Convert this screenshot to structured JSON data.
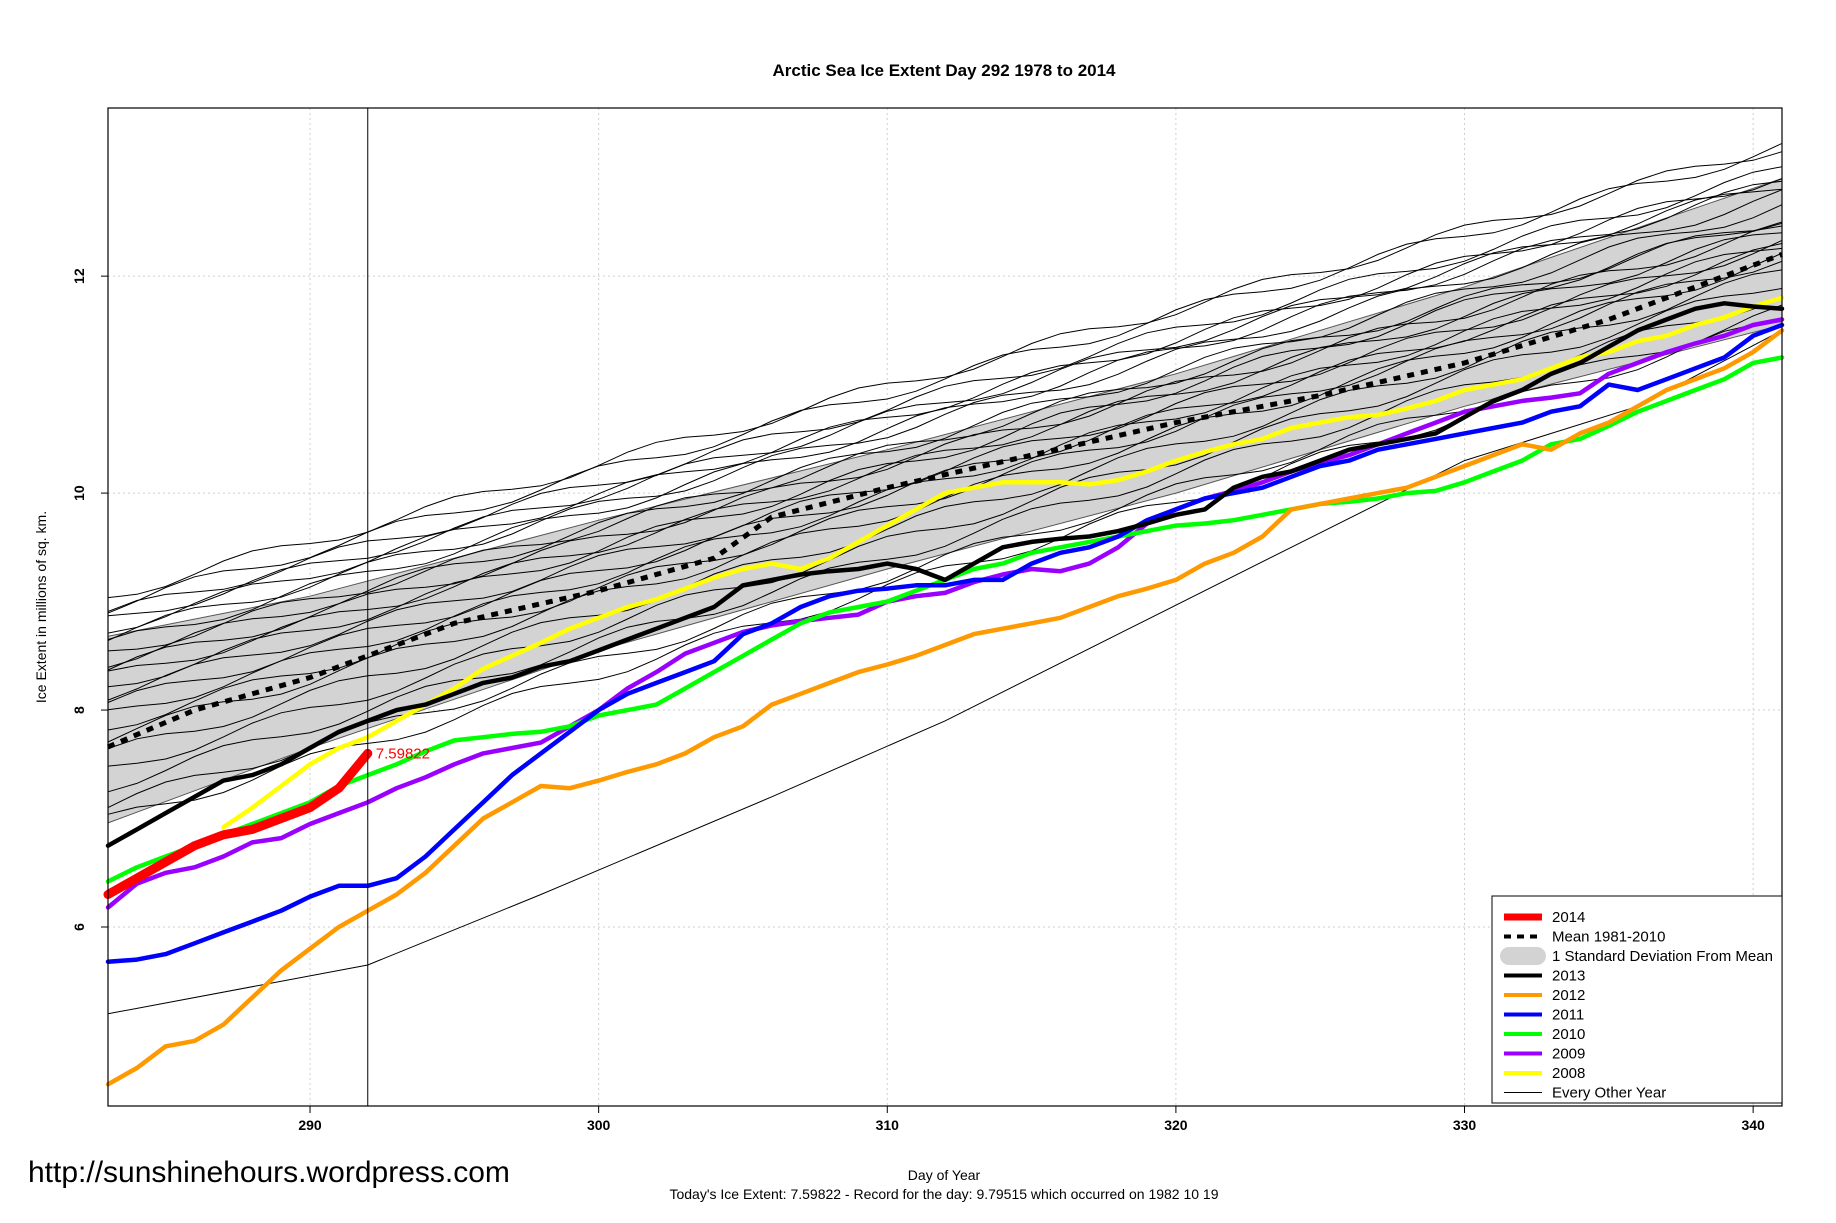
{
  "chart_data": {
    "type": "line",
    "title": "Arctic Sea Ice Extent Day 292 1978 to 2014",
    "xlabel": "Day of Year",
    "ylabel": "Ice Extent in millions of sq. km.",
    "xlim": [
      283,
      341
    ],
    "ylim": [
      4.35,
      13.55
    ],
    "x_ticks": [
      290,
      300,
      310,
      320,
      330,
      340
    ],
    "y_ticks": [
      6,
      8,
      10,
      12
    ],
    "grid": true,
    "legend_position": "bottom-right",
    "current_day": 292,
    "current_label": "7.59822",
    "footer": "Today's Ice Extent: 7.59822  - Record for the day: 9.79515 which occurred on 1982 10 19",
    "watermark": "http://sunshinehours.wordpress.com",
    "legend": [
      {
        "label": "2014",
        "color": "#ff0000",
        "style": "thick"
      },
      {
        "label": "Mean 1981-2010",
        "color": "#000000",
        "style": "dash"
      },
      {
        "label": "1 Standard Deviation From Mean",
        "color": "#d3d3d3",
        "style": "band"
      },
      {
        "label": "2013",
        "color": "#000000",
        "style": "solid"
      },
      {
        "label": "2012",
        "color": "#ff9900",
        "style": "solid"
      },
      {
        "label": "2011",
        "color": "#0000ff",
        "style": "solid"
      },
      {
        "label": "2010",
        "color": "#00ff00",
        "style": "solid"
      },
      {
        "label": "2009",
        "color": "#9900ff",
        "style": "solid"
      },
      {
        "label": "2008",
        "color": "#ffff00",
        "style": "solid"
      },
      {
        "label": "Every Other Year",
        "color": "#000000",
        "style": "thin"
      }
    ],
    "sd_band": {
      "x": [
        283,
        290,
        300,
        310,
        320,
        330,
        341
      ],
      "lower": [
        6.96,
        7.65,
        8.55,
        9.3,
        10.0,
        10.8,
        11.55
      ],
      "upper": [
        8.68,
        9.05,
        9.75,
        10.4,
        11.1,
        11.9,
        12.9
      ]
    },
    "mean": {
      "x": [
        283,
        286,
        290,
        292,
        295,
        300,
        304,
        306,
        310,
        315,
        320,
        325,
        330,
        335,
        341
      ],
      "y": [
        7.66,
        8.0,
        8.3,
        8.5,
        8.8,
        9.1,
        9.4,
        9.78,
        10.05,
        10.35,
        10.65,
        10.9,
        11.2,
        11.6,
        12.2
      ]
    },
    "series": [
      {
        "name": "2014",
        "color": "#ff0000",
        "width": 9,
        "x": [
          283,
          284,
          285,
          286,
          287,
          288,
          289,
          290,
          291,
          292
        ],
        "y": [
          6.3,
          6.45,
          6.6,
          6.75,
          6.85,
          6.9,
          7.0,
          7.1,
          7.28,
          7.6
        ]
      },
      {
        "name": "2013",
        "color": "#000000",
        "width": 4.5,
        "x": [
          283,
          284,
          285,
          286,
          287,
          288,
          289,
          290,
          291,
          292,
          293,
          294,
          295,
          296,
          297,
          298,
          299,
          300,
          301,
          302,
          303,
          304,
          305,
          306,
          307,
          308,
          309,
          310,
          311,
          312,
          313,
          314,
          315,
          316,
          317,
          318,
          319,
          320,
          321,
          322,
          323,
          324,
          325,
          326,
          327,
          328,
          329,
          330,
          331,
          332,
          333,
          334,
          335,
          336,
          337,
          338,
          339,
          340,
          341
        ],
        "y": [
          6.75,
          6.9,
          7.05,
          7.2,
          7.35,
          7.4,
          7.5,
          7.65,
          7.8,
          7.9,
          8.0,
          8.05,
          8.15,
          8.25,
          8.3,
          8.4,
          8.45,
          8.55,
          8.65,
          8.75,
          8.85,
          8.95,
          9.15,
          9.2,
          9.25,
          9.28,
          9.3,
          9.35,
          9.3,
          9.2,
          9.35,
          9.5,
          9.55,
          9.58,
          9.6,
          9.65,
          9.72,
          9.8,
          9.85,
          10.05,
          10.15,
          10.2,
          10.3,
          10.4,
          10.45,
          10.5,
          10.55,
          10.7,
          10.85,
          10.95,
          11.1,
          11.2,
          11.35,
          11.5,
          11.6,
          11.7,
          11.75,
          11.72,
          11.7
        ]
      },
      {
        "name": "2012",
        "color": "#ff9900",
        "width": 4.5,
        "x": [
          283,
          284,
          285,
          286,
          287,
          288,
          289,
          290,
          291,
          292,
          293,
          294,
          295,
          296,
          297,
          298,
          299,
          300,
          301,
          302,
          303,
          304,
          305,
          306,
          307,
          308,
          309,
          310,
          311,
          312,
          313,
          314,
          315,
          316,
          317,
          318,
          319,
          320,
          321,
          322,
          323,
          324,
          325,
          326,
          327,
          328,
          329,
          330,
          331,
          332,
          333,
          334,
          335,
          336,
          337,
          338,
          339,
          340,
          341
        ],
        "y": [
          4.55,
          4.7,
          4.9,
          4.95,
          5.1,
          5.35,
          5.6,
          5.8,
          6.0,
          6.15,
          6.3,
          6.5,
          6.75,
          7.0,
          7.15,
          7.3,
          7.28,
          7.35,
          7.43,
          7.5,
          7.6,
          7.75,
          7.85,
          8.05,
          8.15,
          8.25,
          8.35,
          8.42,
          8.5,
          8.6,
          8.7,
          8.75,
          8.8,
          8.85,
          8.95,
          9.05,
          9.12,
          9.2,
          9.35,
          9.45,
          9.6,
          9.85,
          9.9,
          9.95,
          10.0,
          10.05,
          10.15,
          10.25,
          10.35,
          10.45,
          10.4,
          10.55,
          10.65,
          10.8,
          10.95,
          11.05,
          11.15,
          11.3,
          11.5
        ]
      },
      {
        "name": "2011",
        "color": "#0000ff",
        "width": 4.5,
        "x": [
          283,
          284,
          285,
          286,
          287,
          288,
          289,
          290,
          291,
          292,
          293,
          294,
          295,
          296,
          297,
          298,
          299,
          300,
          301,
          302,
          303,
          304,
          305,
          306,
          307,
          308,
          309,
          310,
          311,
          312,
          313,
          314,
          315,
          316,
          317,
          318,
          319,
          320,
          321,
          322,
          323,
          324,
          325,
          326,
          327,
          328,
          329,
          330,
          331,
          332,
          333,
          334,
          335,
          336,
          337,
          338,
          339,
          340,
          341
        ],
        "y": [
          5.68,
          5.7,
          5.75,
          5.85,
          5.95,
          6.05,
          6.15,
          6.28,
          6.38,
          6.38,
          6.45,
          6.65,
          6.9,
          7.15,
          7.4,
          7.6,
          7.8,
          8.0,
          8.15,
          8.25,
          8.35,
          8.45,
          8.7,
          8.8,
          8.95,
          9.05,
          9.1,
          9.12,
          9.15,
          9.15,
          9.2,
          9.2,
          9.35,
          9.45,
          9.5,
          9.6,
          9.75,
          9.85,
          9.95,
          10.0,
          10.05,
          10.15,
          10.25,
          10.3,
          10.4,
          10.45,
          10.5,
          10.55,
          10.6,
          10.65,
          10.75,
          10.8,
          11.0,
          10.95,
          11.05,
          11.15,
          11.25,
          11.45,
          11.55
        ]
      },
      {
        "name": "2010",
        "color": "#00ff00",
        "width": 4.5,
        "x": [
          283,
          284,
          285,
          286,
          287,
          288,
          289,
          290,
          291,
          292,
          293,
          294,
          295,
          296,
          297,
          298,
          299,
          300,
          301,
          302,
          303,
          304,
          305,
          306,
          307,
          308,
          309,
          310,
          311,
          312,
          313,
          314,
          315,
          316,
          317,
          318,
          319,
          320,
          321,
          322,
          323,
          324,
          325,
          326,
          327,
          328,
          329,
          330,
          331,
          332,
          333,
          334,
          335,
          336,
          337,
          338,
          339,
          340,
          341
        ],
        "y": [
          6.42,
          6.55,
          6.65,
          6.75,
          6.85,
          6.95,
          7.05,
          7.15,
          7.3,
          7.4,
          7.5,
          7.62,
          7.72,
          7.75,
          7.78,
          7.8,
          7.85,
          7.95,
          8.0,
          8.05,
          8.2,
          8.35,
          8.5,
          8.65,
          8.8,
          8.9,
          8.95,
          9.0,
          9.1,
          9.2,
          9.3,
          9.35,
          9.45,
          9.5,
          9.55,
          9.6,
          9.65,
          9.7,
          9.72,
          9.75,
          9.8,
          9.85,
          9.9,
          9.92,
          9.95,
          10.0,
          10.02,
          10.1,
          10.2,
          10.3,
          10.45,
          10.5,
          10.62,
          10.75,
          10.85,
          10.95,
          11.05,
          11.2,
          11.25
        ]
      },
      {
        "name": "2009",
        "color": "#9900ff",
        "width": 4.5,
        "x": [
          283,
          284,
          285,
          286,
          287,
          288,
          289,
          290,
          291,
          292,
          293,
          294,
          295,
          296,
          297,
          298,
          299,
          300,
          301,
          302,
          303,
          304,
          305,
          306,
          307,
          308,
          309,
          310,
          311,
          312,
          313,
          314,
          315,
          316,
          317,
          318,
          319,
          320,
          321,
          322,
          323,
          324,
          325,
          326,
          327,
          328,
          329,
          330,
          331,
          332,
          333,
          334,
          335,
          336,
          337,
          338,
          339,
          340,
          341
        ],
        "y": [
          6.18,
          6.4,
          6.5,
          6.55,
          6.65,
          6.78,
          6.82,
          6.95,
          7.05,
          7.15,
          7.28,
          7.38,
          7.5,
          7.6,
          7.65,
          7.7,
          7.85,
          8.0,
          8.2,
          8.35,
          8.52,
          8.62,
          8.72,
          8.78,
          8.82,
          8.85,
          8.88,
          9.0,
          9.05,
          9.08,
          9.18,
          9.25,
          9.3,
          9.28,
          9.35,
          9.5,
          9.72,
          9.85,
          9.95,
          10.02,
          10.1,
          10.2,
          10.28,
          10.35,
          10.45,
          10.55,
          10.65,
          10.75,
          10.8,
          10.85,
          10.88,
          10.92,
          11.1,
          11.2,
          11.3,
          11.38,
          11.45,
          11.55,
          11.6
        ]
      },
      {
        "name": "2008",
        "color": "#ffff00",
        "width": 4.5,
        "x": [
          287,
          288,
          289,
          290,
          291,
          292,
          293,
          294,
          295,
          296,
          297,
          298,
          299,
          300,
          301,
          302,
          303,
          304,
          305,
          306,
          307,
          308,
          309,
          310,
          311,
          312,
          313,
          314,
          315,
          316,
          317,
          318,
          319,
          320,
          321,
          322,
          323,
          324,
          325,
          326,
          327,
          328,
          329,
          330,
          331,
          332,
          333,
          334,
          335,
          336,
          337,
          338,
          339,
          340,
          341
        ],
        "y": [
          6.92,
          7.1,
          7.3,
          7.5,
          7.65,
          7.75,
          7.9,
          8.05,
          8.2,
          8.38,
          8.5,
          8.62,
          8.75,
          8.85,
          8.95,
          9.02,
          9.12,
          9.22,
          9.3,
          9.35,
          9.3,
          9.4,
          9.55,
          9.7,
          9.85,
          10.0,
          10.05,
          10.1,
          10.1,
          10.1,
          10.08,
          10.12,
          10.2,
          10.3,
          10.38,
          10.45,
          10.5,
          10.6,
          10.65,
          10.7,
          10.72,
          10.78,
          10.85,
          10.95,
          11.0,
          11.05,
          11.15,
          11.25,
          11.3,
          11.4,
          11.45,
          11.55,
          11.62,
          11.72,
          11.8
        ]
      },
      {
        "name": "Every Other Year",
        "color": "#000000",
        "width": 1,
        "x": [
          283,
          292,
          298,
          306,
          312,
          318,
          324,
          330,
          336,
          341
        ],
        "y": [
          5.2,
          5.65,
          6.3,
          7.2,
          7.9,
          8.7,
          9.5,
          10.3,
          10.8,
          11.5
        ]
      }
    ],
    "other_years": [
      {
        "offset": 9.05,
        "slope": 0.0715
      },
      {
        "offset": 8.95,
        "slope": 0.073
      },
      {
        "offset": 8.88,
        "slope": 0.0705
      },
      {
        "offset": 8.82,
        "slope": 0.0695
      },
      {
        "offset": 8.75,
        "slope": 0.072
      },
      {
        "offset": 8.68,
        "slope": 0.07
      },
      {
        "offset": 8.6,
        "slope": 0.0735
      },
      {
        "offset": 8.52,
        "slope": 0.069
      },
      {
        "offset": 8.45,
        "slope": 0.0725
      },
      {
        "offset": 8.38,
        "slope": 0.07
      },
      {
        "offset": 8.3,
        "slope": 0.071
      },
      {
        "offset": 8.22,
        "slope": 0.0745
      },
      {
        "offset": 8.15,
        "slope": 0.0715
      },
      {
        "offset": 8.05,
        "slope": 0.0725
      },
      {
        "offset": 7.95,
        "slope": 0.075
      },
      {
        "offset": 7.85,
        "slope": 0.0745
      },
      {
        "offset": 7.75,
        "slope": 0.076
      },
      {
        "offset": 7.6,
        "slope": 0.0765
      },
      {
        "offset": 7.45,
        "slope": 0.0775
      },
      {
        "offset": 7.3,
        "slope": 0.078
      },
      {
        "offset": 7.12,
        "slope": 0.0785
      },
      {
        "offset": 6.98,
        "slope": 0.0795
      }
    ]
  }
}
